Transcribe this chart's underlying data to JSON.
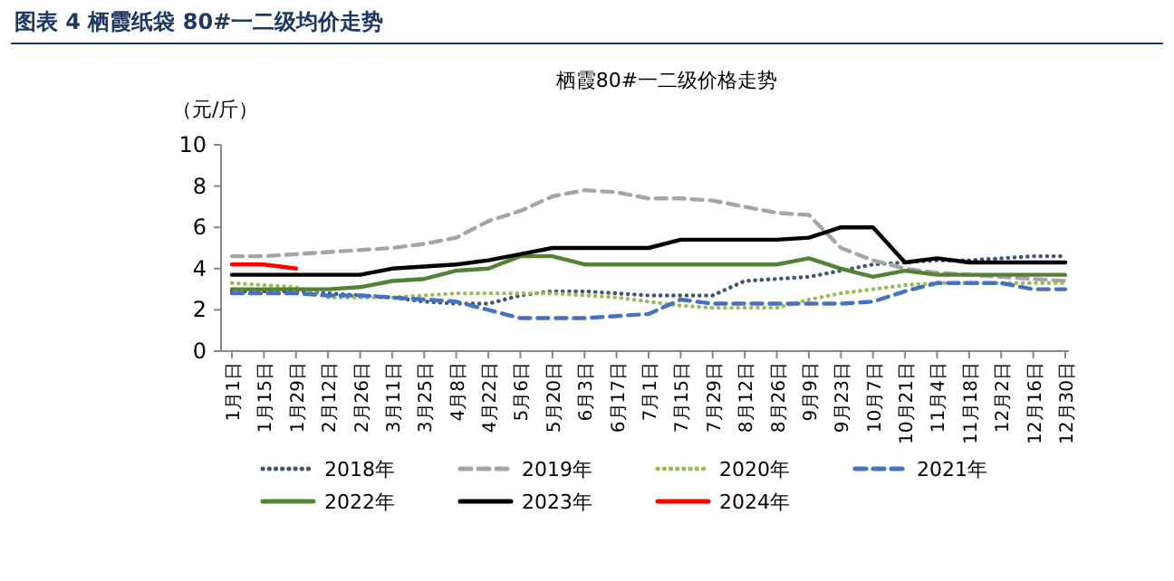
{
  "chart_data": {
    "type": "line",
    "title": "图表 4  栖霞纸袋 80#一二级均价走势",
    "subtitle": "栖霞80#一二级价格走势",
    "ylabel": "（元/斤）",
    "categories": [
      "1月1日",
      "1月15日",
      "1月29日",
      "2月12日",
      "2月26日",
      "3月11日",
      "3月25日",
      "4月8日",
      "4月22日",
      "5月6日",
      "5月20日",
      "6月3日",
      "6月17日",
      "7月1日",
      "7月15日",
      "7月29日",
      "8月12日",
      "8月26日",
      "9月9日",
      "9月23日",
      "10月7日",
      "10月21日",
      "11月4日",
      "11月18日",
      "12月2日",
      "12月16日",
      "12月30日"
    ],
    "series": [
      {
        "name": "2018年",
        "color": "#44546a",
        "line_style": "dotted",
        "values": [
          2.9,
          2.9,
          2.9,
          2.8,
          2.7,
          2.6,
          2.4,
          2.3,
          2.3,
          2.7,
          2.9,
          2.9,
          2.8,
          2.7,
          2.7,
          2.7,
          3.4,
          3.5,
          3.6,
          3.9,
          4.2,
          4.3,
          4.4,
          4.4,
          4.5,
          4.6,
          4.6
        ]
      },
      {
        "name": "2019年",
        "color": "#a5a5a5",
        "line_style": "dashed",
        "values": [
          4.6,
          4.6,
          4.7,
          4.8,
          4.9,
          5.0,
          5.2,
          5.5,
          6.3,
          6.8,
          7.5,
          7.8,
          7.7,
          7.4,
          7.4,
          7.3,
          7.0,
          6.7,
          6.6,
          5.0,
          4.4,
          4.0,
          3.8,
          3.7,
          3.6,
          3.5,
          3.4
        ]
      },
      {
        "name": "2020年",
        "color": "#9bbb59",
        "line_style": "dotted",
        "values": [
          3.3,
          3.2,
          3.1,
          2.6,
          2.6,
          2.6,
          2.7,
          2.8,
          2.8,
          2.8,
          2.8,
          2.7,
          2.6,
          2.4,
          2.2,
          2.1,
          2.1,
          2.1,
          2.5,
          2.8,
          3.0,
          3.2,
          3.3,
          3.3,
          3.3,
          3.3,
          3.3
        ]
      },
      {
        "name": "2021年",
        "color": "#4472c4",
        "line_style": "dashed",
        "values": [
          2.8,
          2.8,
          2.8,
          2.7,
          2.7,
          2.6,
          2.5,
          2.4,
          2.0,
          1.6,
          1.6,
          1.6,
          1.7,
          1.8,
          2.5,
          2.3,
          2.3,
          2.3,
          2.3,
          2.3,
          2.4,
          2.9,
          3.3,
          3.3,
          3.3,
          3.0,
          3.0
        ]
      },
      {
        "name": "2022年",
        "color": "#548235",
        "line_style": "solid",
        "values": [
          3.0,
          3.0,
          3.0,
          3.0,
          3.1,
          3.4,
          3.5,
          3.9,
          4.0,
          4.6,
          4.6,
          4.2,
          4.2,
          4.2,
          4.2,
          4.2,
          4.2,
          4.2,
          4.5,
          4.0,
          3.6,
          3.9,
          3.7,
          3.7,
          3.7,
          3.7,
          3.7
        ]
      },
      {
        "name": "2023年",
        "color": "#000000",
        "line_style": "solid",
        "values": [
          3.7,
          3.7,
          3.7,
          3.7,
          3.7,
          4.0,
          4.1,
          4.2,
          4.4,
          4.7,
          5.0,
          5.0,
          5.0,
          5.0,
          5.4,
          5.4,
          5.4,
          5.4,
          5.5,
          6.0,
          6.0,
          4.3,
          4.5,
          4.3,
          4.3,
          4.3,
          4.3
        ]
      },
      {
        "name": "2024年",
        "color": "#ff0000",
        "line_style": "solid",
        "values": [
          4.2,
          4.2,
          4.0,
          null,
          null,
          null,
          null,
          null,
          null,
          null,
          null,
          null,
          null,
          null,
          null,
          null,
          null,
          null,
          null,
          null,
          null,
          null,
          null,
          null,
          null,
          null,
          null
        ]
      }
    ],
    "ylim": [
      0,
      10
    ],
    "yticks": [
      0,
      2,
      4,
      6,
      8,
      10
    ],
    "grid": false,
    "legend": "bottom",
    "marker": "none"
  }
}
